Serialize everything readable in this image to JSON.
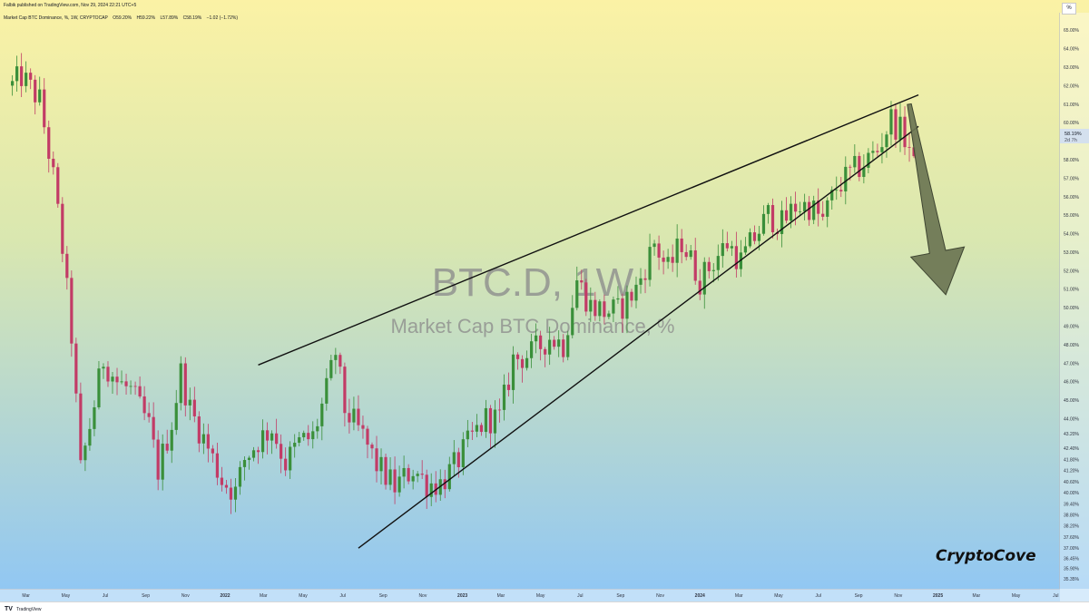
{
  "header": {
    "published": "Falbik published on TradingView.com, Nov 29, 2024 22:21 UTC+5",
    "symbol": "Market Cap BTC Dominance, %, 1W, CRYPTOCAP",
    "open": "O59.20%",
    "high": "H59.22%",
    "low": "L57.89%",
    "close": "C58.19%",
    "change": "−1.02 (−1.72%)"
  },
  "watermark": {
    "line1": "BTC.D, 1W",
    "line2": "Market Cap BTC Dominance, %"
  },
  "price_label": {
    "value": "58.19%",
    "countdown": "2d 7h"
  },
  "scale_button": "%",
  "brand": "CryptoCove",
  "footer": {
    "logo": "TV",
    "text": "TradingView"
  },
  "colors": {
    "bull": "#3a8f3a",
    "bear": "#c23b66",
    "bg_top": "#fbf2a5",
    "bg_bottom": "#8fc6f5",
    "arrow": "#6b7552"
  },
  "chart_data": {
    "type": "candlestick",
    "title": "Market Cap BTC Dominance, %",
    "timeframe": "1W",
    "ylabel": "%",
    "ylim": [
      34.95,
      65.6
    ],
    "y_ticks": [
      "65.00%",
      "64.00%",
      "63.00%",
      "62.00%",
      "61.00%",
      "60.00%",
      "59.00%",
      "58.00%",
      "57.00%",
      "56.00%",
      "55.00%",
      "54.00%",
      "53.00%",
      "52.00%",
      "51.00%",
      "50.00%",
      "49.00%",
      "48.00%",
      "47.00%",
      "46.00%",
      "45.00%",
      "44.00%",
      "43.20%",
      "42.40%",
      "41.80%",
      "41.20%",
      "40.60%",
      "40.00%",
      "39.40%",
      "38.80%",
      "38.20%",
      "37.60%",
      "37.00%",
      "36.45%",
      "35.90%",
      "35.35%"
    ],
    "x_ticks": [
      "Mar",
      "May",
      "Jul",
      "Sep",
      "Nov",
      "2022",
      "Mar",
      "May",
      "Jul",
      "Sep",
      "Nov",
      "2023",
      "Mar",
      "May",
      "Jul",
      "Sep",
      "Nov",
      "2024",
      "Mar",
      "May",
      "Jul",
      "Sep",
      "Nov",
      "2025",
      "Mar",
      "May",
      "Jul"
    ],
    "x_range": [
      "2021-02-01",
      "2025-08-15"
    ],
    "anchors": [
      [
        "2021-02-08",
        62.0
      ],
      [
        "2021-02-22",
        62.5
      ],
      [
        "2021-03-22",
        61.2
      ],
      [
        "2021-04-12",
        57.0
      ],
      [
        "2021-04-26",
        53.2
      ],
      [
        "2021-05-10",
        48.5
      ],
      [
        "2021-05-24",
        41.2
      ],
      [
        "2021-06-14",
        44.8
      ],
      [
        "2021-06-28",
        47.2
      ],
      [
        "2021-07-19",
        46.0
      ],
      [
        "2021-08-09",
        45.5
      ],
      [
        "2021-09-06",
        43.6
      ],
      [
        "2021-09-20",
        41.2
      ],
      [
        "2021-10-11",
        43.8
      ],
      [
        "2021-10-25",
        46.5
      ],
      [
        "2021-11-08",
        44.5
      ],
      [
        "2021-12-06",
        42.4
      ],
      [
        "2021-12-27",
        40.7
      ],
      [
        "2022-01-17",
        40.0
      ],
      [
        "2022-01-31",
        41.8
      ],
      [
        "2022-02-21",
        42.8
      ],
      [
        "2022-03-14",
        43.5
      ],
      [
        "2022-04-04",
        41.6
      ],
      [
        "2022-04-25",
        42.7
      ],
      [
        "2022-05-16",
        43.0
      ],
      [
        "2022-06-06",
        45.5
      ],
      [
        "2022-06-20",
        47.6
      ],
      [
        "2022-07-04",
        44.5
      ],
      [
        "2022-08-01",
        43.0
      ],
      [
        "2022-08-22",
        41.5
      ],
      [
        "2022-09-19",
        40.3
      ],
      [
        "2022-10-17",
        41.3
      ],
      [
        "2022-11-07",
        40.5
      ],
      [
        "2022-11-28",
        40.5
      ],
      [
        "2022-12-19",
        41.4
      ],
      [
        "2023-01-16",
        43.0
      ],
      [
        "2023-02-06",
        44.0
      ],
      [
        "2023-02-27",
        44.0
      ],
      [
        "2023-03-20",
        47.2
      ],
      [
        "2023-04-17",
        47.5
      ],
      [
        "2023-05-15",
        48.4
      ],
      [
        "2023-06-05",
        48.0
      ],
      [
        "2023-06-26",
        51.5
      ],
      [
        "2023-07-17",
        50.1
      ],
      [
        "2023-08-07",
        49.8
      ],
      [
        "2023-08-28",
        49.8
      ],
      [
        "2023-09-25",
        51.0
      ],
      [
        "2023-10-23",
        53.5
      ],
      [
        "2023-11-13",
        52.0
      ],
      [
        "2023-12-04",
        53.6
      ],
      [
        "2024-01-01",
        51.5
      ],
      [
        "2024-01-22",
        52.5
      ],
      [
        "2024-02-12",
        53.5
      ],
      [
        "2024-03-04",
        52.5
      ],
      [
        "2024-03-25",
        53.8
      ],
      [
        "2024-04-15",
        55.0
      ],
      [
        "2024-05-06",
        54.5
      ],
      [
        "2024-05-27",
        55.5
      ],
      [
        "2024-06-17",
        55.5
      ],
      [
        "2024-07-08",
        54.7
      ],
      [
        "2024-07-29",
        56.5
      ],
      [
        "2024-08-19",
        57.2
      ],
      [
        "2024-09-09",
        57.8
      ],
      [
        "2024-09-30",
        58.5
      ],
      [
        "2024-10-21",
        60.2
      ],
      [
        "2024-11-11",
        59.2
      ],
      [
        "2024-11-25",
        58.19
      ]
    ],
    "last_close": 58.19,
    "trendlines": [
      {
        "name": "upper",
        "from": [
          "2022-02-21",
          46.9
        ],
        "to": [
          "2024-12-02",
          61.5
        ]
      },
      {
        "name": "lower",
        "from": [
          "2022-07-25",
          37.0
        ],
        "to": [
          "2024-12-02",
          59.8
        ]
      }
    ],
    "annotation": {
      "type": "arrow",
      "direction": "down",
      "from": [
        "2024-11-18",
        61.0
      ],
      "to": [
        "2025-01-13",
        50.7
      ]
    },
    "grid": false,
    "legend": "none"
  }
}
